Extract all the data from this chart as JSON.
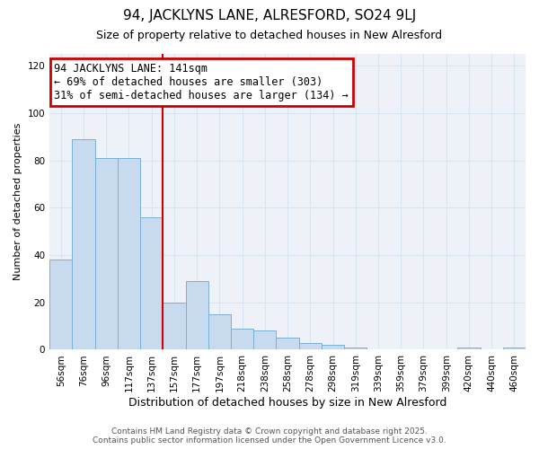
{
  "title1": "94, JACKLYNS LANE, ALRESFORD, SO24 9LJ",
  "title2": "Size of property relative to detached houses in New Alresford",
  "xlabel": "Distribution of detached houses by size in New Alresford",
  "ylabel": "Number of detached properties",
  "categories": [
    "56sqm",
    "76sqm",
    "96sqm",
    "117sqm",
    "137sqm",
    "157sqm",
    "177sqm",
    "197sqm",
    "218sqm",
    "238sqm",
    "258sqm",
    "278sqm",
    "298sqm",
    "319sqm",
    "339sqm",
    "359sqm",
    "379sqm",
    "399sqm",
    "420sqm",
    "440sqm",
    "460sqm"
  ],
  "values": [
    38,
    89,
    81,
    81,
    56,
    20,
    29,
    15,
    9,
    8,
    5,
    3,
    2,
    1,
    0,
    0,
    0,
    0,
    1,
    0,
    1
  ],
  "bar_color": "#c8daee",
  "bar_edge_color": "#7aafd4",
  "bar_width": 1.0,
  "property_line_x": 4.5,
  "property_label": "94 JACKLYNS LANE: 141sqm",
  "annotation_line1": "← 69% of detached houses are smaller (303)",
  "annotation_line2": "31% of semi-detached houses are larger (134) →",
  "annotation_box_color": "#ffffff",
  "annotation_box_edge_color": "#cc0000",
  "vline_color": "#cc0000",
  "ylim": [
    0,
    125
  ],
  "yticks": [
    0,
    20,
    40,
    60,
    80,
    100,
    120
  ],
  "grid_color": "#d8e4f0",
  "fig_bg_color": "#ffffff",
  "axes_bg_color": "#eef2f8",
  "footer1": "Contains HM Land Registry data © Crown copyright and database right 2025.",
  "footer2": "Contains public sector information licensed under the Open Government Licence v3.0.",
  "title1_fontsize": 11,
  "title2_fontsize": 9,
  "ylabel_fontsize": 8,
  "xlabel_fontsize": 9,
  "tick_fontsize": 7.5,
  "footer_fontsize": 6.5,
  "annot_fontsize": 8.5
}
